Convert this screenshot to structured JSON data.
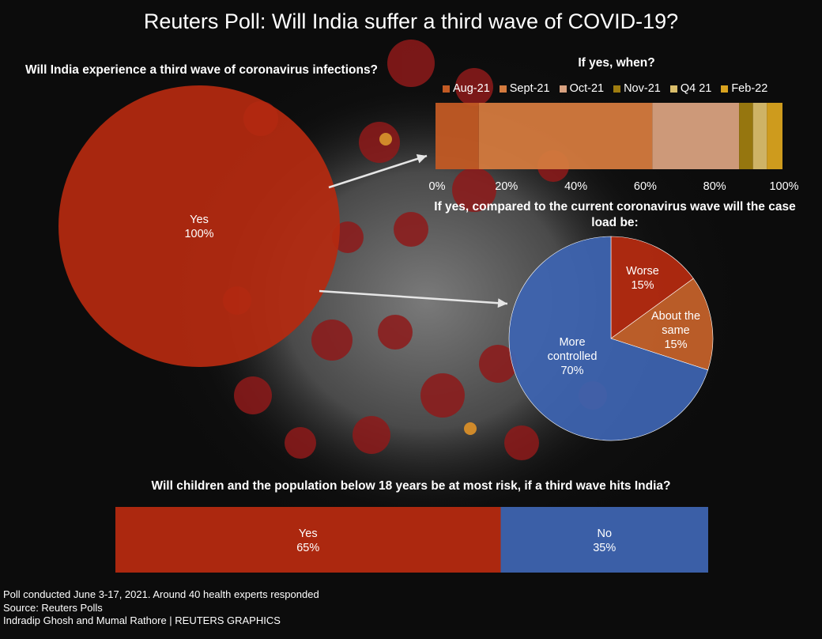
{
  "title": "Reuters Poll: Will India suffer a third wave of COVID-19?",
  "colors": {
    "red": "#b52a10",
    "blue": "#3e64b0",
    "orange": "#c5622b",
    "aug": "#c25a24",
    "sept": "#d47a3e",
    "oct": "#d8a180",
    "nov": "#9e7c10",
    "q4": "#d9bd6b",
    "feb": "#d9a31f"
  },
  "footer": {
    "line1": "Poll conducted June 3-17, 2021. Around 40 health experts responded",
    "line2": "Source: Reuters Polls",
    "line3": "Indradip Ghosh and Mumal Rathore | REUTERS GRAPHICS"
  },
  "chart_data": [
    {
      "type": "pie",
      "title": "Will India experience a third wave of coronavirus infections?",
      "slices": [
        {
          "label": "Yes",
          "value": 100,
          "value_label": "100%"
        }
      ]
    },
    {
      "type": "bar",
      "orientation": "horizontal-stacked",
      "title": "If yes, when?",
      "xlim": [
        0,
        100
      ],
      "x_ticks": [
        "0%",
        "20%",
        "40%",
        "60%",
        "80%",
        "100%"
      ],
      "legend_position": "top",
      "series": [
        {
          "name": "Aug-21",
          "value": 12.5
        },
        {
          "name": "Sept-21",
          "value": 50
        },
        {
          "name": "Oct-21",
          "value": 25
        },
        {
          "name": "Nov-21",
          "value": 4
        },
        {
          "name": "Q4 21",
          "value": 4
        },
        {
          "name": "Feb-22",
          "value": 4.5
        }
      ]
    },
    {
      "type": "pie",
      "title": "If yes, compared to the current coronavirus wave will the case load be:",
      "slices": [
        {
          "label": "Worse",
          "value": 15,
          "value_label": "15%"
        },
        {
          "label": "About the same",
          "value": 15,
          "value_label": "15%"
        },
        {
          "label": "More controlled",
          "value": 70,
          "value_label": "70%"
        }
      ]
    },
    {
      "type": "bar",
      "orientation": "horizontal-stacked",
      "title": "Will children and the population below 18 years be at most risk, if a third wave hits India?",
      "series": [
        {
          "label": "Yes",
          "value": 65,
          "value_label": "65%"
        },
        {
          "label": "No",
          "value": 35,
          "value_label": "35%"
        }
      ]
    }
  ]
}
